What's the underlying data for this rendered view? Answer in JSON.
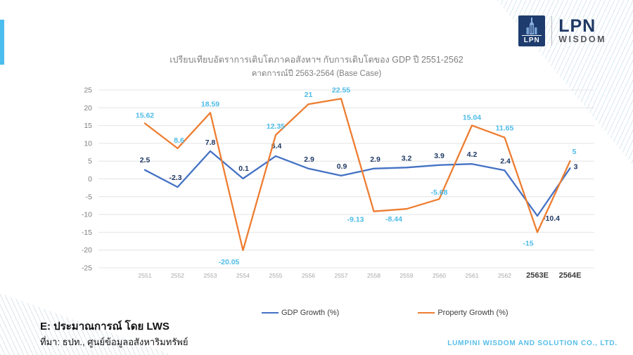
{
  "header": {
    "logo": {
      "icon_text": "LPN",
      "brand": "LPN",
      "sub_brand": "WISDOM",
      "navy": "#1E3C6E"
    }
  },
  "chart_data": {
    "type": "line",
    "title": "เปรียบเทียบอัตราการเติบโตภาคอสังหาฯ กับการเติบโตของ GDP ปี 2551-2562",
    "subtitle": "คาดการณ์ปี 2563-2564 (Base Case)",
    "categories": [
      "2551",
      "2552",
      "2553",
      "2554",
      "2555",
      "2556",
      "2557",
      "2558",
      "2559",
      "2560",
      "2561",
      "2562",
      "2563E",
      "2564E"
    ],
    "series": [
      {
        "name": "GDP Growth (%)",
        "color": "#4472C4",
        "label_color": "#1F3864",
        "values": [
          2.5,
          -2.3,
          7.8,
          0.1,
          6.4,
          2.9,
          0.9,
          2.9,
          3.2,
          3.9,
          4.2,
          2.4,
          -10.4,
          3
        ],
        "label_offsets": [
          [
            0,
            -11
          ],
          [
            -3,
            -10
          ],
          [
            0,
            -9
          ],
          [
            1,
            -11
          ],
          [
            1,
            -11
          ],
          [
            1,
            -10
          ],
          [
            1,
            -10
          ],
          [
            2,
            -10
          ],
          [
            0,
            -10
          ],
          [
            0,
            -10
          ],
          [
            0,
            -10
          ],
          [
            1,
            -10
          ],
          [
            20,
            7
          ],
          [
            8,
            1
          ]
        ]
      },
      {
        "name": "Property Growth (%)",
        "color": "#ED7D31",
        "label_color": "#4DBBE8",
        "values": [
          15.62,
          8.6,
          18.59,
          -20.05,
          12.35,
          21,
          22.55,
          -9.13,
          -8.44,
          -5.68,
          15.04,
          11.65,
          -15,
          5
        ],
        "label_offsets": [
          [
            0,
            -8
          ],
          [
            2,
            -8
          ],
          [
            0,
            -9
          ],
          [
            -20,
            20
          ],
          [
            0,
            -9
          ],
          [
            0,
            -10
          ],
          [
            0,
            -9
          ],
          [
            -26,
            15
          ],
          [
            -18,
            18
          ],
          [
            0,
            -6
          ],
          [
            0,
            -8
          ],
          [
            0,
            -10
          ],
          [
            -13,
            19
          ],
          [
            6,
            -10
          ]
        ]
      }
    ],
    "ylim": [
      -25,
      25
    ],
    "ytick_step": 5,
    "grid": true,
    "legend_position": "bottom"
  },
  "footer": {
    "note_line1": "E: ประมาณการณ์ โดย LWS",
    "note_line2": "ที่มา: ธปท., ศูนย์ข้อมูลอสังหาริมทรัพย์",
    "company": "LUMPINI WISDOM AND SOLUTION CO., LTD."
  }
}
